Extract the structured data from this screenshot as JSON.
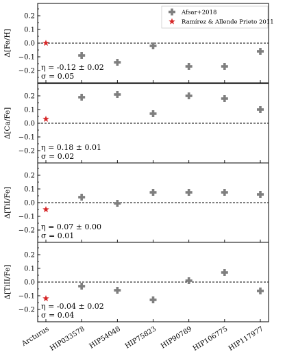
{
  "chart_data": {
    "type": "scatter",
    "categories": [
      "Arcturus",
      "HIP033578",
      "HIP54048",
      "HIP75823",
      "HIP90789",
      "HIP106775",
      "HIP117977"
    ],
    "legend": {
      "placement": "top-right",
      "entries": [
        {
          "label": "Afsar+2018",
          "marker": "plus",
          "color": "#7f7f7f"
        },
        {
          "label": "Ramírez & Allende Prieto 2011",
          "marker": "star",
          "color": "#d62728"
        }
      ]
    },
    "panels": [
      {
        "ylabel_base": "Δ[Fe/H]",
        "ylim": [
          -0.25,
          0.25
        ],
        "yticks": [
          "0.2",
          "0.1",
          "0.0",
          "−0.1",
          "−0.2"
        ],
        "ytick_values": [
          0.2,
          0.1,
          0.0,
          -0.1,
          -0.2
        ],
        "reference": {
          "name": "Ramírez & Allende Prieto 2011",
          "category": "Arcturus",
          "value": 0.0
        },
        "series": {
          "name": "Afsar+2018",
          "values": [
            -0.09,
            -0.14,
            -0.02,
            -0.17,
            -0.17,
            -0.06
          ]
        },
        "eta": "η = -0.12 ± 0.02",
        "sigma": "σ = 0.05"
      },
      {
        "ylabel_base": "Δ[Ca/Fe]",
        "ylim": [
          -0.25,
          0.25
        ],
        "yticks": [
          "0.2",
          "0.1",
          "0.0",
          "−0.1",
          "−0.2"
        ],
        "ytick_values": [
          0.2,
          0.1,
          0.0,
          -0.1,
          -0.2
        ],
        "reference": {
          "name": "Ramírez & Allende Prieto 2011",
          "category": "Arcturus",
          "value": 0.03
        },
        "series": {
          "name": "Afsar+2018",
          "values": [
            0.19,
            0.21,
            0.07,
            0.2,
            0.18,
            0.1
          ]
        },
        "eta": "η = 0.18 ± 0.01",
        "sigma": "σ = 0.02"
      },
      {
        "ylabel_base": "Δ[TiI/Fe]",
        "ylim": [
          -0.25,
          0.25
        ],
        "yticks": [
          "0.2",
          "0.1",
          "0.0",
          "−0.1",
          "−0.2"
        ],
        "ytick_values": [
          0.2,
          0.1,
          0.0,
          -0.1,
          -0.2
        ],
        "reference": {
          "name": "Ramírez & Allende Prieto 2011",
          "category": "Arcturus",
          "value": -0.05
        },
        "series": {
          "name": "Afsar+2018",
          "values": [
            0.04,
            -0.005,
            0.075,
            0.075,
            0.075,
            0.06
          ]
        },
        "eta": "η = 0.07 ± 0.00",
        "sigma": "σ = 0.01"
      },
      {
        "ylabel_base": "Δ[TiII/Fe]",
        "ylim": [
          -0.25,
          0.25
        ],
        "yticks": [
          "0.2",
          "0.1",
          "0.0",
          "−0.1",
          "−0.2"
        ],
        "ytick_values": [
          0.2,
          0.1,
          0.0,
          -0.1,
          -0.2
        ],
        "reference": {
          "name": "Ramírez & Allende Prieto 2011",
          "category": "Arcturus",
          "value": -0.12
        },
        "series": {
          "name": "Afsar+2018",
          "values": [
            -0.03,
            -0.06,
            -0.13,
            0.01,
            0.07,
            -0.065
          ]
        },
        "eta": "η = -0.04 ± 0.02",
        "sigma": "σ = 0.04"
      }
    ],
    "zero_line": "dashed",
    "grid": false
  }
}
